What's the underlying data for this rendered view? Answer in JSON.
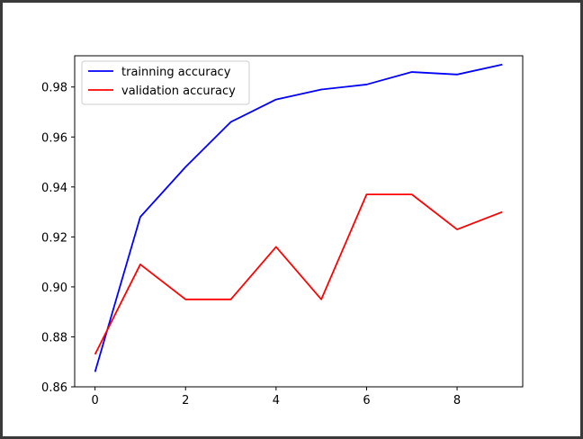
{
  "chart_data": {
    "type": "line",
    "title": "",
    "xlabel": "",
    "ylabel": "",
    "x": [
      0,
      1,
      2,
      3,
      4,
      5,
      6,
      7,
      8,
      9
    ],
    "xticks": [
      0,
      2,
      4,
      6,
      8
    ],
    "xtick_labels": [
      "0",
      "2",
      "4",
      "6",
      "8"
    ],
    "yticks": [
      0.86,
      0.88,
      0.9,
      0.92,
      0.94,
      0.96,
      0.98
    ],
    "ytick_labels": [
      "0.86",
      "0.88",
      "0.90",
      "0.92",
      "0.94",
      "0.96",
      "0.98"
    ],
    "xlim": [
      -0.45,
      9.45
    ],
    "ylim": [
      0.86,
      0.9925
    ],
    "grid": false,
    "legend_position": "top-left",
    "series": [
      {
        "name": "trainning accuracy",
        "color": "#0000ff",
        "values": [
          0.866,
          0.928,
          0.948,
          0.966,
          0.975,
          0.979,
          0.981,
          0.986,
          0.985,
          0.989
        ]
      },
      {
        "name": "validation accuracy",
        "color": "#ff0000",
        "values": [
          0.873,
          0.909,
          0.895,
          0.895,
          0.916,
          0.895,
          0.937,
          0.937,
          0.923,
          0.93
        ]
      }
    ]
  }
}
